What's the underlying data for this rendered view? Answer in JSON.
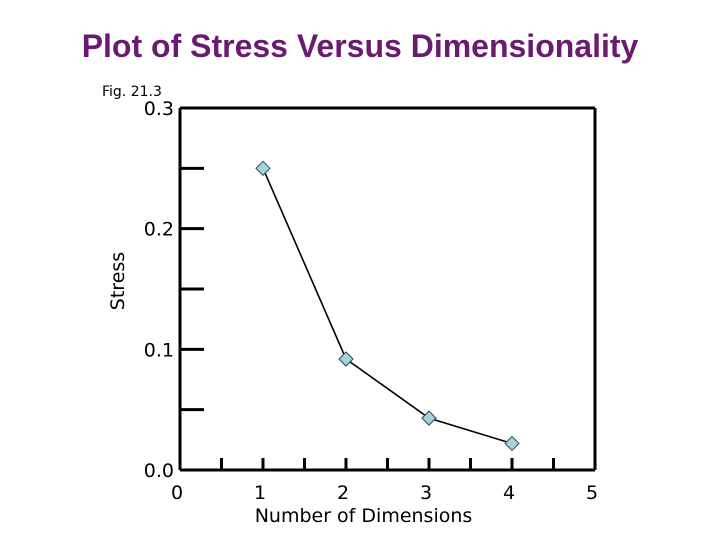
{
  "title": "Plot of Stress Versus Dimensionality",
  "figure_label": "Fig. 21.3",
  "chart_data": {
    "type": "line",
    "xlabel": "Number of Dimensions",
    "ylabel": "Stress",
    "xlim": [
      0,
      5
    ],
    "ylim": [
      0,
      0.3
    ],
    "x_ticks": [
      "0",
      "1",
      "2",
      "3",
      "4",
      "5"
    ],
    "y_ticks": [
      "0.0",
      "0.1",
      "0.2",
      "0.3"
    ],
    "series": [
      {
        "x": [
          1,
          2,
          3,
          4
        ],
        "y": [
          0.25,
          0.092,
          0.043,
          0.022
        ]
      }
    ],
    "marker": "diamond",
    "marker_color": "#a9d1e0",
    "grid": false
  }
}
